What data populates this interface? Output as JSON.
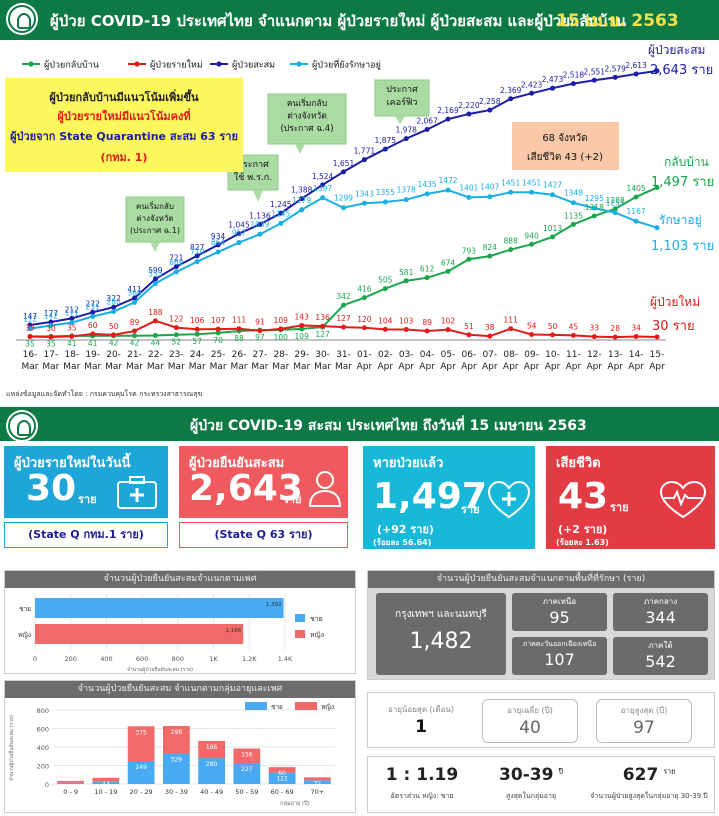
{
  "header": {
    "title": "ผู้ป่วย COVID-19 ประเทศไทย จำแนกตาม ผู้ป่วยรายใหม่ ผู้ป่วยสะสม  และผู้ป่วยกลับบ้าน",
    "date": "15 เม.ย. 2563"
  },
  "chart_data": {
    "type": "line",
    "x": [
      "16-Mar",
      "17-Mar",
      "18-Mar",
      "19-Mar",
      "20-Mar",
      "21-Mar",
      "22-Mar",
      "23-Mar",
      "24-Mar",
      "25-Mar",
      "26-Mar",
      "27-Mar",
      "28-Mar",
      "29-Mar",
      "30-Mar",
      "31-Mar",
      "01-Apr",
      "02-Apr",
      "03-Apr",
      "04-Apr",
      "05-Apr",
      "06-Apr",
      "07-Apr",
      "08-Apr",
      "09-Apr",
      "10-Apr",
      "11-Apr",
      "12-Apr",
      "13-Apr",
      "14-Apr",
      "15-Apr"
    ],
    "x_top": [
      "16-",
      "17-",
      "18-",
      "19-",
      "20-",
      "21-",
      "22-",
      "23-",
      "24-",
      "25-",
      "26-",
      "27-",
      "28-",
      "29-",
      "30-",
      "31-",
      "01-",
      "02-",
      "03-",
      "04-",
      "05-",
      "06-",
      "07-",
      "08-",
      "09-",
      "10-",
      "11-",
      "12-",
      "13-",
      "14-",
      "15-"
    ],
    "x_bot": [
      "Mar",
      "Mar",
      "Mar",
      "Mar",
      "Mar",
      "Mar",
      "Mar",
      "Mar",
      "Mar",
      "Mar",
      "Mar",
      "Mar",
      "Mar",
      "Mar",
      "Mar",
      "Mar",
      "Apr",
      "Apr",
      "Apr",
      "Apr",
      "Apr",
      "Apr",
      "Apr",
      "Apr",
      "Apr",
      "Apr",
      "Apr",
      "Apr",
      "Apr",
      "Apr",
      "Apr"
    ],
    "series": [
      {
        "name": "ผู้ป่วยกลับบ้าน",
        "color": "#1aa64b",
        "values": [
          35,
          35,
          41,
          41,
          42,
          42,
          44,
          52,
          57,
          70,
          88,
          97,
          100,
          109,
          127,
          342,
          416,
          505,
          581,
          612,
          674,
          793,
          824,
          888,
          940,
          1013,
          1135,
          1218,
          1288,
          1405,
          1497
        ]
      },
      {
        "name": "ผู้ป่วยรายใหม่",
        "color": "#e21b1b",
        "values": [
          33,
          30,
          35,
          60,
          50,
          89,
          188,
          122,
          106,
          107,
          111,
          91,
          109,
          143,
          136,
          127,
          120,
          104,
          103,
          89,
          102,
          51,
          38,
          111,
          54,
          50,
          45,
          33,
          28,
          34,
          30
        ]
      },
      {
        "name": "ผู้ป่วยสะสม",
        "color": "#1d1da8",
        "values": [
          147,
          177,
          212,
          272,
          322,
          411,
          599,
          721,
          827,
          934,
          1045,
          1136,
          1245,
          1388,
          1524,
          1651,
          1771,
          1875,
          1978,
          2067,
          2169,
          2220,
          2258,
          2369,
          2423,
          2473,
          2518,
          2551,
          2579,
          2613,
          2643
        ]
      },
      {
        "name": "ผู้ป่วยที่ยังรักษาอยู่",
        "color": "#1aaee5",
        "values": [
          112,
          142,
          171,
          231,
          280,
          369,
          555,
          669,
          770,
          864,
          957,
          1039,
          1145,
          1279,
          1397,
          1299,
          1343,
          1355,
          1378,
          1435,
          1472,
          1401,
          1407,
          1451,
          1451,
          1427,
          1348,
          1295,
          1251,
          1167,
          1103
        ]
      }
    ],
    "labels": {
      "cum": [
        "147",
        "177",
        "212",
        "272",
        "322",
        "411",
        "599",
        "721",
        "827",
        "934",
        "1,045",
        "1,136",
        "1,245",
        "1,388",
        "1,524",
        "1,651",
        "1,771",
        "1,875",
        "1,978",
        "2,067",
        "2,169",
        "2,220",
        "2,258",
        "2,369",
        "2,423",
        "2,473",
        "2,518",
        "2,551",
        "2,579",
        "2,613"
      ],
      "new": [
        "33",
        "30",
        "35",
        "60",
        "50",
        "89",
        "188",
        "122",
        "106",
        "107",
        "111",
        "91",
        "109",
        "143",
        "136",
        "127",
        "120",
        "104",
        "103",
        "89",
        "102",
        "51",
        "38",
        "111",
        "54",
        "50",
        "45",
        "33",
        "28",
        "34"
      ],
      "rec": [
        "35",
        "35",
        "41",
        "41",
        "42",
        "42",
        "44",
        "52",
        "57",
        "70",
        "88",
        "97",
        "100",
        "109",
        "127",
        "342",
        "416",
        "505",
        "581",
        "612",
        "674",
        "793",
        "824",
        "888",
        "940",
        "1013",
        "1135",
        "1218",
        "1288",
        "1405"
      ],
      "act": [
        "112",
        "142",
        "171",
        "231",
        "280",
        "369",
        "555",
        "669",
        "770",
        "864",
        "957",
        "1039",
        "1145",
        "1279",
        "1397",
        "1299",
        "1343",
        "1355",
        "1378",
        "1435",
        "1472",
        "1401",
        "1407",
        "1451",
        "1451",
        "1427",
        "1348",
        "1295",
        "1251",
        "1167"
      ]
    },
    "ylim": [
      0,
      2750
    ]
  },
  "end_labels": {
    "cum_name": "ผู้ป่วยสะสม",
    "cum_val": "2,643 ราย",
    "rec_name": "กลับบ้าน",
    "rec_val": "1,497 ราย",
    "act_name": "รักษาอยู่",
    "act_val": "1,103 ราย",
    "new_name": "ผู้ป่วยใหม่",
    "new_val": "30 ราย"
  },
  "callouts": {
    "c1": [
      "คนเริ่มกลับ",
      "ต่างจังหวัด",
      "(ประกาศ ฉ.1)"
    ],
    "c2": [
      "ประกาศ",
      "ใช้ พ.ร.ก."
    ],
    "c3": [
      "คนเริ่มกลับ",
      "ต่างจังหวัด",
      "(ประกาศ ฉ.4)"
    ],
    "c4": [
      "ประกาศ",
      "เคอร์ฟิว"
    ],
    "c5": [
      "68 จังหวัด",
      "เสียชีวิต 43 (+2)"
    ]
  },
  "note": {
    "l1": "ผู้ป่วยกลับบ้านมีแนวโน้มเพิ่มขึ้น",
    "l2": "ผู้ป่วยรายใหม่มีแนวโน้มคงที่",
    "l3": "ผู้ป่วยจาก State Quarantine สะสม 63 ราย",
    "l4": "(กทม. 1)"
  },
  "source": "แหล่งข้อมูลและจัดทำโดย : กรมควบคุมโรค กระทรวงสาธารณสุข",
  "summary_title": "ผู้ป่วย COVID-19 สะสม  ประเทศไทย ถึงวันที่ 15 เมษายน 2563",
  "boxes": {
    "new": {
      "label": "ผู้ป่วยรายใหม่ในวันนี้",
      "value": "30",
      "unit": "ราย",
      "sub": "(State Q กทม.1 ราย)",
      "color": "#1ea6d9"
    },
    "cum": {
      "label": "ผู้ป่วยยืนยันสะสม",
      "value": "2,643",
      "unit": "ราย",
      "sub": "(State Q 63 ราย)",
      "color": "#ef5a5f"
    },
    "rec": {
      "label": "หายป่วยแล้ว",
      "value": "1,497",
      "unit": "ราย",
      "sub1": "(+92 ราย)",
      "sub2": "(ร้อยละ 56.64)",
      "color": "#1ab8d8"
    },
    "death": {
      "label": "เสียชีวิต",
      "value": "43",
      "unit": "ราย",
      "sub1": "(+2 ราย)",
      "sub2": "(ร้อยละ 1.63)",
      "color": "#e23b44"
    }
  },
  "gender_chart": {
    "title": "จำนวนผู้ป่วยยืนยันสะสมจำแนกตามเพศ",
    "categories": [
      "ชาย",
      "หญิง"
    ],
    "values": [
      1392,
      1166
    ],
    "labels": [
      "1,392",
      "1,166"
    ],
    "colors": [
      "#49a9f2",
      "#f06a6a"
    ],
    "ticks": [
      "0",
      "200",
      "400",
      "600",
      "800",
      "1K",
      "1.2K",
      "1.4K"
    ],
    "xlabel": "จำนวนผู้ป่วยยืนยันสะสม (ราย)",
    "xlim": [
      0,
      1400
    ],
    "legend": [
      "ชาย",
      "หญิง"
    ]
  },
  "age_chart": {
    "title": "จำนวนผู้ป่วยยืนยันสะสม จำแนกตามกลุ่มอายุและเพศ",
    "categories": [
      "0 - 9",
      "10 - 19",
      "20 - 29",
      "30 - 39",
      "40 - 49",
      "50 - 59",
      "60 - 69",
      "70+"
    ],
    "male": [
      13,
      24,
      249,
      329,
      280,
      227,
      122,
      40
    ],
    "female": [
      20,
      43,
      375,
      298,
      186,
      156,
      60,
      32
    ],
    "ylim": [
      0,
      800
    ],
    "ticks": [
      "0",
      "200",
      "400",
      "600",
      "800"
    ],
    "ylabel": "จำนวนผู้ป่วยยืนยันสะสม (ราย)",
    "xlabel": "กลุ่มอายุ (ปี)",
    "legend": [
      "ชาย",
      "หญิง"
    ]
  },
  "region": {
    "title": "จำนวนผู้ป่วยยืนยันสะสมจำแนกตามพื้นที่ที่รักษา (ราย)",
    "bkk_label": "กรุงเทพฯ และนนทบุรี",
    "bkk_value": "1,482",
    "items": [
      {
        "label": "ภาคเหนือ",
        "value": "95"
      },
      {
        "label": "ภาคกลาง",
        "value": "344"
      },
      {
        "label": "ภาคตะวันออกเฉียงเหนือ",
        "value": "107"
      },
      {
        "label": "ภาคใต้",
        "value": "542"
      }
    ]
  },
  "age_stats": [
    {
      "label": "อายุน้อยสุด (เดือน)",
      "value": "1"
    },
    {
      "label": "อายุเฉลี่ย (ปี)",
      "value": "40"
    },
    {
      "label": "อายุสูงสุด (ปี)",
      "value": "97"
    }
  ],
  "bottom": [
    {
      "value": "1 : 1.19",
      "sup": "",
      "label": "อัตราส่วน หญิง: ชาย"
    },
    {
      "value": "30-39",
      "sup": "ปี",
      "label": "สูงสุดในกลุ่มอายุ"
    },
    {
      "value": "627",
      "sup": "ราย",
      "label": "จำนวนผู้ป่วยสูงสุดในกลุ่มอายุ 30-39 ปี"
    }
  ]
}
